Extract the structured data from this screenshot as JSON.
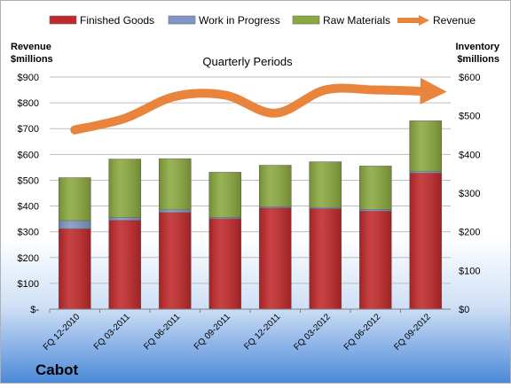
{
  "company": "Cabot",
  "chart_data": {
    "type": "bar",
    "title": "Quarterly Periods",
    "categories": [
      "FQ 12-2010",
      "FQ 03-2011",
      "FQ 06-2011",
      "FQ 09-2011",
      "FQ 12-2011",
      "FQ 03-2012",
      "FQ 06-2012",
      "FQ 09-2012"
    ],
    "left_axis_label": [
      "Revenue",
      "$millions"
    ],
    "right_axis_label": [
      "Inventory",
      "$millions"
    ],
    "left_ticks": [
      "$-",
      "$100",
      "$200",
      "$300",
      "$400",
      "$500",
      "$600",
      "$700",
      "$800",
      "$900"
    ],
    "right_ticks": [
      "$0",
      "$100",
      "$200",
      "$300",
      "$400",
      "$500",
      "$600"
    ],
    "left_ylim": [
      0,
      900
    ],
    "right_ylim": [
      0,
      600
    ],
    "legend": [
      "Finished Goods",
      "Work in Progress",
      "Raw Materials",
      "Revenue"
    ],
    "legend_position": "top",
    "grid": true,
    "series": [
      {
        "name": "Finished Goods",
        "axis": "right",
        "stacked": true,
        "color": "#c0282a",
        "values": [
          208,
          230,
          250,
          234,
          262,
          260,
          254,
          352
        ]
      },
      {
        "name": "Work in Progress",
        "axis": "right",
        "stacked": true,
        "color": "#7f96c4",
        "values": [
          21,
          7,
          7,
          3,
          3,
          3,
          4,
          4
        ]
      },
      {
        "name": "Raw Materials",
        "axis": "right",
        "stacked": true,
        "color": "#8aa83e",
        "values": [
          111,
          151,
          132,
          117,
          107,
          118,
          112,
          131
        ]
      },
      {
        "name": "Revenue",
        "axis": "left",
        "type": "line",
        "color": "#e8843c",
        "values": [
          695,
          740,
          825,
          830,
          760,
          850,
          850,
          845
        ]
      }
    ]
  }
}
